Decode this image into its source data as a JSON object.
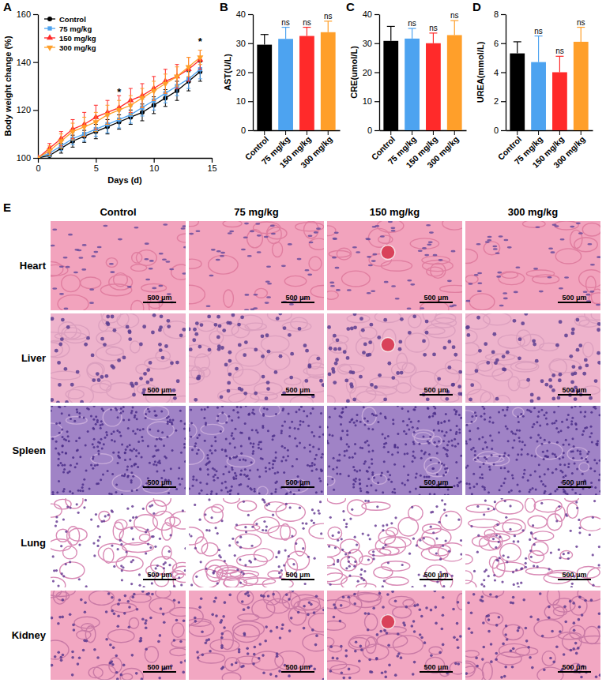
{
  "chart_data": [
    {
      "type": "line",
      "panel": "A",
      "x_label": "Days  (d)",
      "y_label": "Body weight change (%)",
      "x": [
        0,
        1,
        2,
        3,
        4,
        5,
        6,
        7,
        8,
        9,
        10,
        11,
        12,
        13,
        14
      ],
      "series": [
        {
          "name": "Control",
          "color": "#000000",
          "marker": "circle",
          "values": [
            100,
            101,
            104,
            107,
            109,
            111,
            113,
            115,
            117,
            119,
            122,
            125,
            128,
            132,
            136
          ],
          "errors": [
            0,
            1.5,
            2,
            2.5,
            2.5,
            3,
            3,
            3,
            3,
            3.5,
            3.5,
            3.5,
            4,
            4,
            4
          ]
        },
        {
          "name": "75 mg/kg",
          "color": "#4da3f0",
          "marker": "square",
          "values": [
            100,
            102,
            105,
            108,
            110,
            112,
            114,
            116,
            118,
            121,
            124,
            127,
            130,
            133,
            137
          ],
          "errors": [
            0,
            1.5,
            2,
            2.5,
            3,
            3,
            3.5,
            3.5,
            3.5,
            3.5,
            4,
            4,
            4,
            4,
            4
          ]
        },
        {
          "name": "150 mg/kg",
          "color": "#ff2a2a",
          "marker": "triangle",
          "values": [
            100,
            104,
            108,
            112,
            114,
            117,
            119,
            121,
            124,
            126,
            129,
            132,
            134,
            137,
            141
          ],
          "errors": [
            0,
            2,
            3,
            4,
            5,
            5,
            5,
            5,
            5,
            5,
            5,
            5,
            5,
            5,
            4
          ]
        },
        {
          "name": "300 mg/kg",
          "color": "#ff9f2a",
          "marker": "triangle-down",
          "values": [
            100,
            103,
            107,
            111,
            113,
            115,
            118,
            120,
            122,
            125,
            128,
            131,
            134,
            138,
            142
          ],
          "errors": [
            0,
            2,
            3,
            3.5,
            4,
            4,
            4,
            4,
            4,
            4,
            4,
            4,
            4,
            4,
            3
          ]
        }
      ],
      "xlim": [
        0,
        15
      ],
      "xticks": [
        0,
        5,
        10,
        15
      ],
      "ylim": [
        100,
        160
      ],
      "yticks": [
        100,
        120,
        140,
        160
      ],
      "legend": "upper left",
      "annotations": [
        {
          "x": 7,
          "y": 126,
          "text": "*"
        },
        {
          "x": 14,
          "y": 147,
          "text": "*"
        }
      ]
    },
    {
      "type": "bar",
      "panel": "B",
      "y_label": "AST(U/L)",
      "categories": [
        "Control",
        "75 mg/kg",
        "150 mg/kg",
        "300 mg/kg"
      ],
      "values": [
        29.5,
        31.5,
        32.5,
        33.8
      ],
      "errors": [
        3.5,
        4,
        3,
        3.8
      ],
      "colors": [
        "#000000",
        "#4da3f0",
        "#ff2a2a",
        "#ff9f2a"
      ],
      "significance": [
        null,
        "ns",
        "ns",
        "ns"
      ],
      "ylim": [
        0,
        40
      ],
      "yticks": [
        0,
        10,
        20,
        30,
        40
      ]
    },
    {
      "type": "bar",
      "panel": "C",
      "y_label": "CRE(umol/L)",
      "categories": [
        "Control",
        "75 mg/kg",
        "150 mg/kg",
        "300 mg/kg"
      ],
      "values": [
        30.8,
        31.6,
        30,
        32.8
      ],
      "errors": [
        5,
        3.5,
        3.5,
        5
      ],
      "colors": [
        "#000000",
        "#4da3f0",
        "#ff2a2a",
        "#ff9f2a"
      ],
      "significance": [
        null,
        "ns",
        "ns",
        "ns"
      ],
      "ylim": [
        0,
        40
      ],
      "yticks": [
        0,
        10,
        20,
        30,
        40
      ]
    },
    {
      "type": "bar",
      "panel": "D",
      "y_label": "UREA(mmol/L)",
      "categories": [
        "Control",
        "75 mg/kg",
        "150 mg/kg",
        "300 mg/kg"
      ],
      "values": [
        5.3,
        4.7,
        4.0,
        6.1
      ],
      "errors": [
        0.8,
        1.8,
        1.1,
        1.0
      ],
      "colors": [
        "#000000",
        "#4da3f0",
        "#ff2a2a",
        "#ff9f2a"
      ],
      "significance": [
        null,
        "ns",
        "ns",
        "ns"
      ],
      "ylim": [
        0,
        8
      ],
      "yticks": [
        0,
        2,
        4,
        6,
        8
      ]
    }
  ],
  "histology": {
    "panel": "E",
    "columns": [
      "Control",
      "75 mg/kg",
      "150 mg/kg",
      "300 mg/kg"
    ],
    "rows": [
      "Heart",
      "Liver",
      "Spleen",
      "Lung",
      "Kidney"
    ],
    "scale_bar": "500 μm"
  }
}
